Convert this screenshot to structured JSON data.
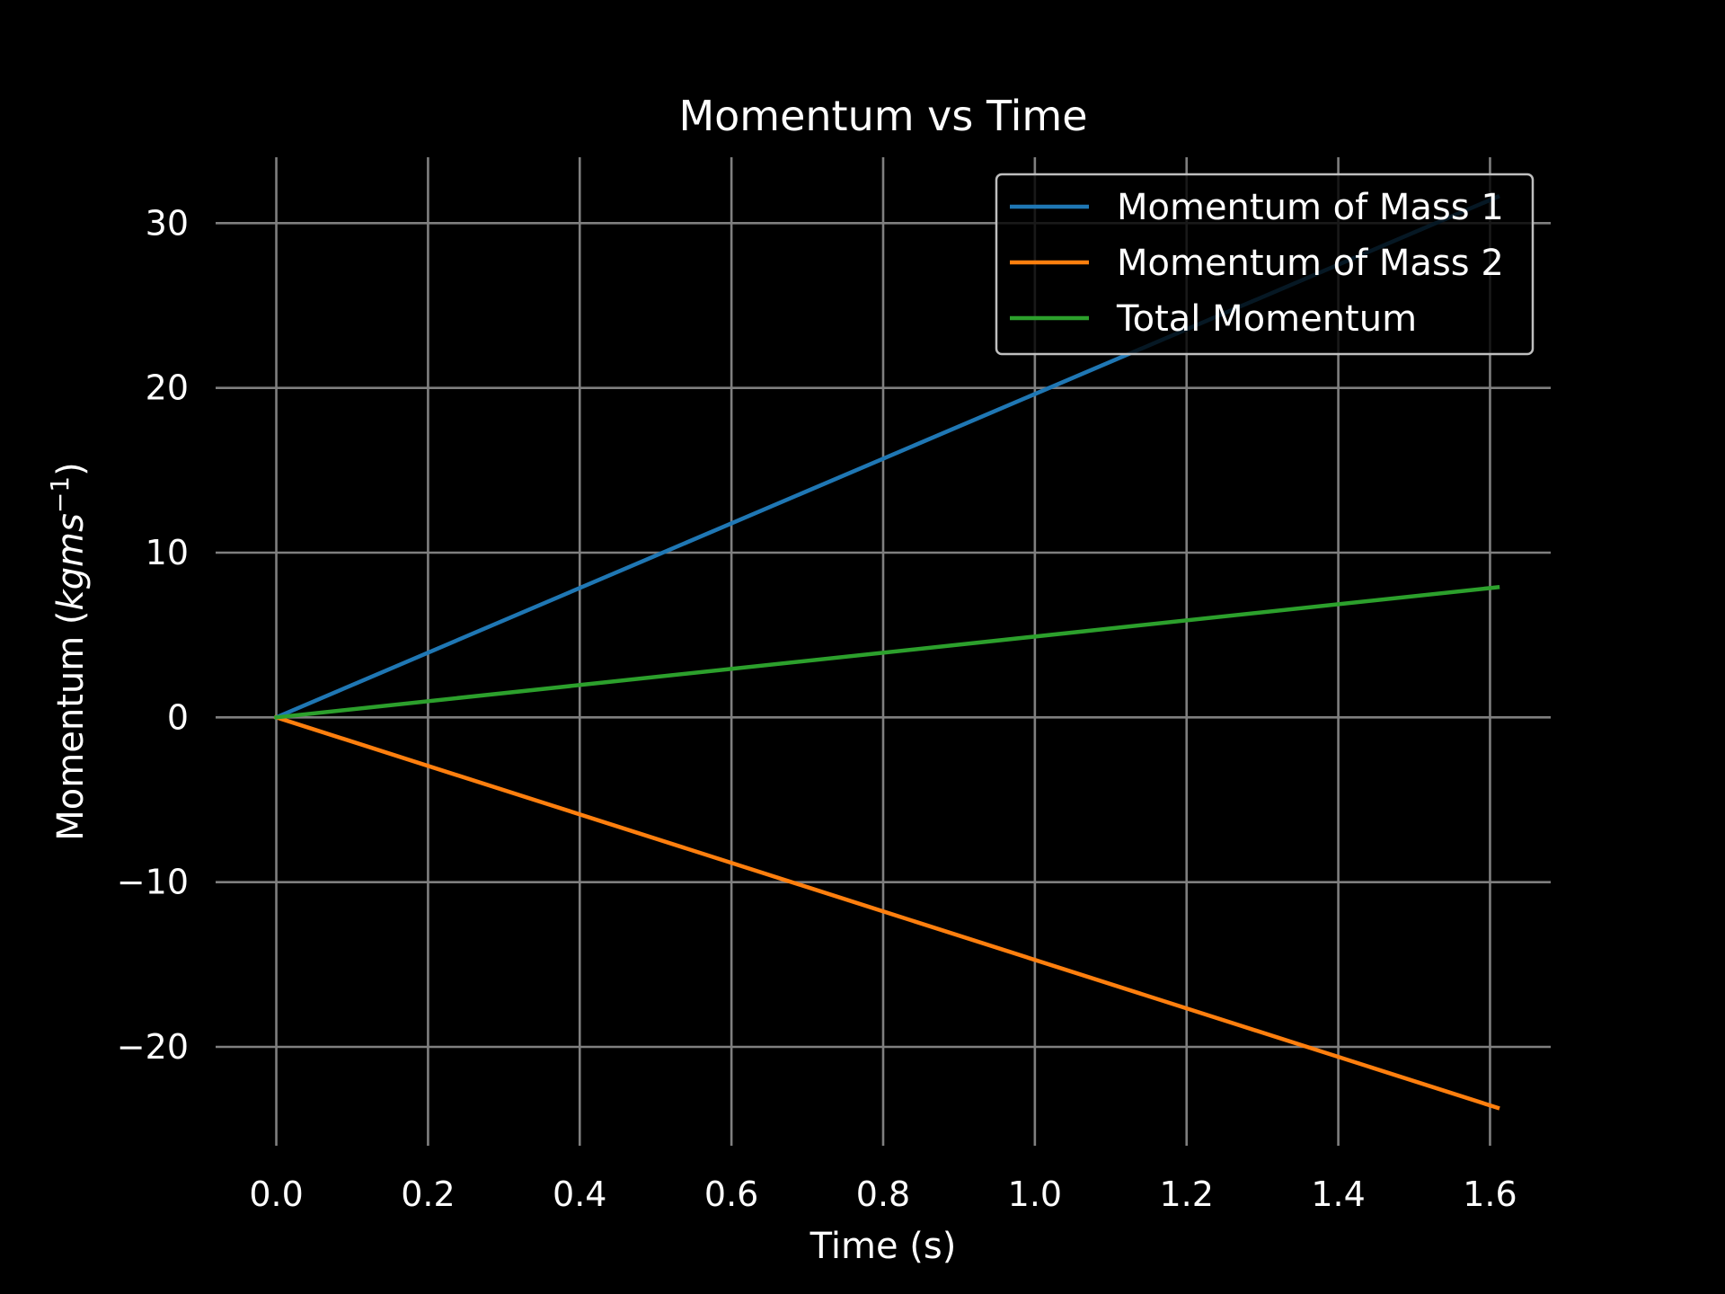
{
  "chart_data": {
    "type": "line",
    "title": "Momentum vs Time",
    "xlabel": "Time (s)",
    "ylabel": {
      "prefix": "Momentum (",
      "math": "kgms",
      "sup": "−1",
      "suffix": ")"
    },
    "xlim": [
      -0.08,
      1.68
    ],
    "ylim": [
      -26,
      34
    ],
    "xticks": [
      0.0,
      0.2,
      0.4,
      0.6,
      0.8,
      1.0,
      1.2,
      1.4,
      1.6
    ],
    "xtick_labels": [
      "0.0",
      "0.2",
      "0.4",
      "0.6",
      "0.8",
      "1.0",
      "1.2",
      "1.4",
      "1.6"
    ],
    "yticks": [
      -20,
      -10,
      0,
      10,
      20,
      30
    ],
    "ytick_labels": [
      "−20",
      "−10",
      "0",
      "10",
      "20",
      "30"
    ],
    "grid": true,
    "legend_position": "top-right",
    "series": [
      {
        "name": "Momentum of Mass 1",
        "color": "#1f77b4",
        "x": [
          0.0,
          1.61
        ],
        "y": [
          0.0,
          31.6
        ]
      },
      {
        "name": "Momentum of Mass 2",
        "color": "#ff7f0e",
        "x": [
          0.0,
          1.61
        ],
        "y": [
          0.0,
          -23.7
        ]
      },
      {
        "name": "Total Momentum",
        "color": "#2ca02c",
        "x": [
          0.0,
          1.61
        ],
        "y": [
          0.0,
          7.9
        ]
      }
    ]
  }
}
